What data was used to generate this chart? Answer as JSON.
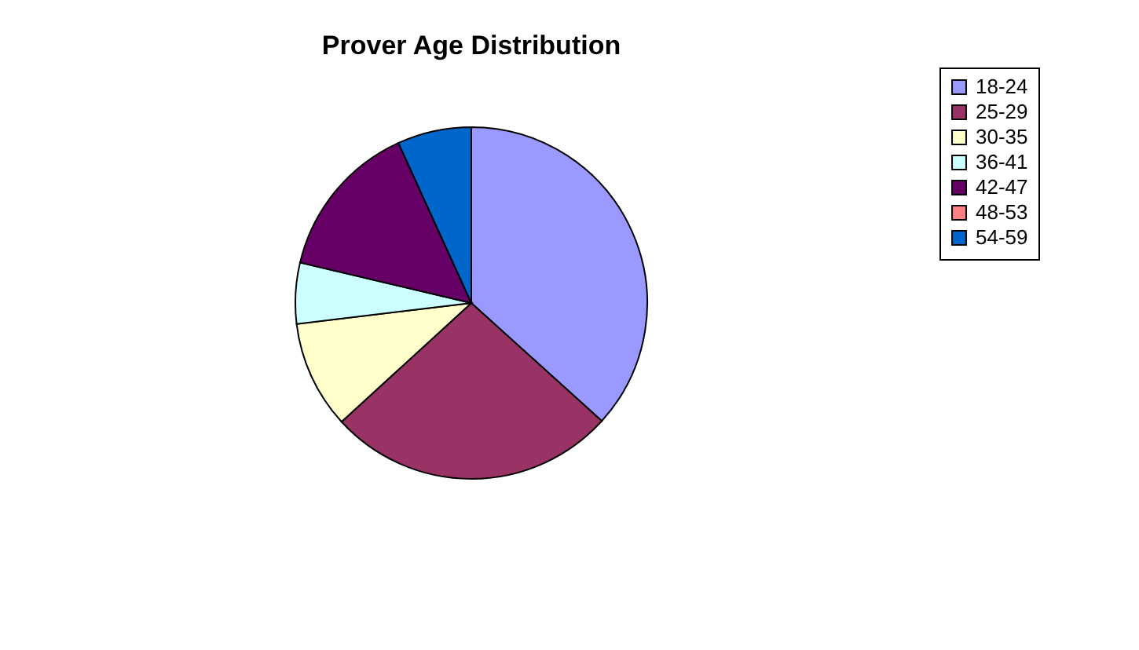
{
  "chart_data": {
    "type": "pie",
    "title": "Prover Age Distribution",
    "categories": [
      "18-24",
      "25-29",
      "30-35",
      "36-41",
      "42-47",
      "48-53",
      "54-59"
    ],
    "values": [
      36.7,
      26.5,
      9.9,
      5.6,
      14.5,
      0,
      6.8
    ],
    "colors": [
      "#9999ff",
      "#993366",
      "#ffffcc",
      "#ccffff",
      "#660066",
      "#ff8080",
      "#0066cc"
    ],
    "legend": "right"
  }
}
